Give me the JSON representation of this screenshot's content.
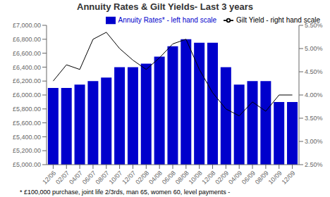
{
  "chart_data": {
    "type": "bar",
    "title": "Annuity Rates & Gilt Yields-  Last 3 years",
    "annotations": [
      "* £100,000 purchase, joint life 2/3rds, man 65, women 60, level payments -"
    ],
    "categories": [
      "12/06",
      "02/07",
      "04/07",
      "06/07",
      "08/07",
      "10/07",
      "12/07",
      "02/08",
      "04/08",
      "06/08",
      "08/08",
      "10/08",
      "12/08",
      "02/09",
      "04/09",
      "06/09",
      "08/09",
      "10/09",
      "12/09"
    ],
    "series": [
      {
        "name": "Annuity Rates* - left hand scale",
        "type": "bar",
        "color": "#0000cc",
        "values": [
          6100,
          6100,
          6150,
          6200,
          6250,
          6400,
          6400,
          6450,
          6550,
          6700,
          6800,
          6750,
          6750,
          6400,
          6150,
          6200,
          6200,
          5900,
          5900
        ]
      },
      {
        "name": "Gilt Yield - right hand scale",
        "type": "line",
        "color": "#000000",
        "axis": "y2",
        "values": [
          4.3,
          4.65,
          4.55,
          5.2,
          5.35,
          5.0,
          4.75,
          4.55,
          4.8,
          5.1,
          5.2,
          4.55,
          4.05,
          3.7,
          3.55,
          3.85,
          3.65,
          4.0,
          4.0
        ]
      }
    ],
    "ylim": [
      5000,
      7000
    ],
    "yticks": [
      {
        "value": 5000,
        "label": "£5,000.00"
      },
      {
        "value": 5200,
        "label": "£5,200.00"
      },
      {
        "value": 5400,
        "label": "£5,400.00"
      },
      {
        "value": 5600,
        "label": "£5,600.00"
      },
      {
        "value": 5800,
        "label": "£5,800.00"
      },
      {
        "value": 6000,
        "label": "£6,000.00"
      },
      {
        "value": 6200,
        "label": "£6,200.00"
      },
      {
        "value": 6400,
        "label": "£6,400.00"
      },
      {
        "value": 6600,
        "label": "£6,600.00"
      },
      {
        "value": 6800,
        "label": "£6,800.00"
      },
      {
        "value": 7000,
        "label": "£7,000.00"
      }
    ],
    "y2lim": [
      2.5,
      5.5
    ],
    "y2ticks": [
      {
        "value": 2.5,
        "label": "2.50%"
      },
      {
        "value": 3.0,
        "label": "3.00%"
      },
      {
        "value": 3.5,
        "label": "3.50%"
      },
      {
        "value": 4.0,
        "label": "4.00%"
      },
      {
        "value": 4.5,
        "label": "4.50%"
      },
      {
        "value": 5.0,
        "label": "5.00%"
      },
      {
        "value": 5.5,
        "label": "5.50%"
      }
    ],
    "grid": false,
    "legend": "upper right"
  }
}
